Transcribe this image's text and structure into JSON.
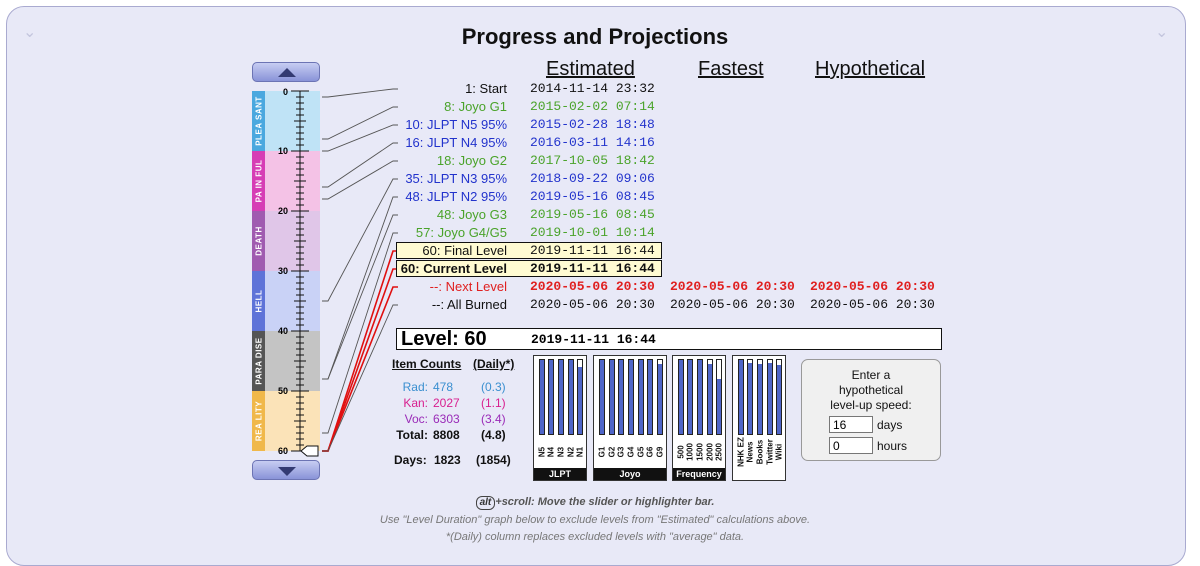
{
  "title": "Progress and Projections",
  "columns": {
    "estimated": "Estimated",
    "fastest": "Fastest",
    "hypothetical": "Hypothetical"
  },
  "slider": {
    "bands": [
      {
        "label": "PLEA SANT",
        "color": "#4aa8df",
        "bg": "#bfe3f6",
        "from": 1,
        "to": 10
      },
      {
        "label": "PA IN FUL",
        "color": "#d63db5",
        "bg": "#f4c2e6",
        "from": 11,
        "to": 20
      },
      {
        "label": "DEATH",
        "color": "#a05bb0",
        "bg": "#e0c6e8",
        "from": 21,
        "to": 30
      },
      {
        "label": "HELL",
        "color": "#5e73d8",
        "bg": "#c9d2f6",
        "from": 31,
        "to": 40
      },
      {
        "label": "PARA DISE",
        "color": "#555555",
        "bg": "#c4c4c4",
        "from": 41,
        "to": 50
      },
      {
        "label": "REA LITY",
        "color": "#f0b84a",
        "bg": "#fbe3b8",
        "from": 51,
        "to": 60
      }
    ],
    "tick_labels": [
      "0",
      "10",
      "20",
      "30",
      "40",
      "50",
      "60"
    ],
    "current_level": 60
  },
  "milestones": [
    {
      "level": "1",
      "label": "Start",
      "estimated": "2014-11-14 23:32",
      "color": "#111111"
    },
    {
      "level": "8",
      "label": "Joyo G1",
      "estimated": "2015-02-02 07:14",
      "color": "#4aa32a"
    },
    {
      "level": "10",
      "label": "JLPT N5 95%",
      "estimated": "2015-02-28 18:48",
      "color": "#2233cc"
    },
    {
      "level": "16",
      "label": "JLPT N4 95%",
      "estimated": "2016-03-11 14:16",
      "color": "#2233cc"
    },
    {
      "level": "18",
      "label": "Joyo G2",
      "estimated": "2017-10-05 18:42",
      "color": "#4aa32a"
    },
    {
      "level": "35",
      "label": "JLPT N3 95%",
      "estimated": "2018-09-22 09:06",
      "color": "#2233cc"
    },
    {
      "level": "48",
      "label": "JLPT N2 95%",
      "estimated": "2019-05-16 08:45",
      "color": "#2233cc"
    },
    {
      "level": "48",
      "label": "Joyo G3",
      "estimated": "2019-05-16 08:45",
      "color": "#4aa32a"
    },
    {
      "level": "57",
      "label": "Joyo G4/G5",
      "estimated": "2019-10-01 10:14",
      "color": "#4aa32a"
    },
    {
      "level": "60",
      "label": "Final Level",
      "estimated": "2019-11-11 16:44",
      "color": "#111111"
    },
    {
      "level": "60",
      "label": "Current Level",
      "estimated": "2019-11-11 16:44",
      "color": "#111111"
    },
    {
      "level": "--",
      "label": "Next Level",
      "estimated": "2020-05-06 20:30",
      "fastest": "2020-05-06 20:30",
      "hypothetical": "2020-05-06 20:30",
      "color": "#e02020"
    },
    {
      "level": "--",
      "label": "All Burned",
      "estimated": "2020-05-06 20:30",
      "fastest": "2020-05-06 20:30",
      "hypothetical": "2020-05-06 20:30",
      "color": "#111111"
    }
  ],
  "level_box": {
    "title": "Level: 60",
    "date": "2019-11-11 16:44"
  },
  "item_counts": {
    "header": "Item Counts",
    "daily_header": "(Daily*)",
    "rows": [
      {
        "label": "Rad:",
        "value": "478",
        "daily": "(0.3)",
        "color": "#3a8fd0"
      },
      {
        "label": "Kan:",
        "value": "2027",
        "daily": "(1.1)",
        "color": "#d8208f"
      },
      {
        "label": "Voc:",
        "value": "6303",
        "daily": "(3.4)",
        "color": "#9a2bb8"
      },
      {
        "label": "Total:",
        "value": "8808",
        "daily": "(4.8)",
        "color": "#111111"
      }
    ],
    "days_label": "Days:",
    "days_value": "1823",
    "days_daily": "(1854)"
  },
  "graphs": [
    {
      "name": "JLPT",
      "ticks": [
        "N5",
        "N4",
        "N3",
        "N2",
        "N1"
      ],
      "fill": [
        1.0,
        1.0,
        1.0,
        1.0,
        0.9
      ]
    },
    {
      "name": "Joyo",
      "ticks": [
        "G1",
        "G2",
        "G3",
        "G4",
        "G5",
        "G6",
        "G9"
      ],
      "fill": [
        1.0,
        1.0,
        1.0,
        1.0,
        1.0,
        1.0,
        0.95
      ]
    },
    {
      "name": "Frequency",
      "ticks": [
        "500",
        "1000",
        "1500",
        "2000",
        "2500"
      ],
      "fill": [
        1.0,
        1.0,
        1.0,
        0.95,
        0.75
      ]
    },
    {
      "name": "NHK EZ News Books Twitter Wiki",
      "ticks": [
        "NHK EZ",
        "News",
        "Books",
        "Twitter",
        "Wiki"
      ],
      "fill": [
        1.0,
        0.96,
        0.94,
        0.96,
        0.93
      ],
      "show_footer": false
    }
  ],
  "hypothetical": {
    "prompt_lines": [
      "Enter a",
      "hypothetical",
      "level-up speed:"
    ],
    "days_value": "16",
    "days_unit": "days",
    "hours_value": "0",
    "hours_unit": "hours"
  },
  "footer": {
    "alt_key": "alt",
    "line1_rest": "+scroll: Move the slider or highlighter bar.",
    "line2": "Use \"Level Duration\" graph below to exclude levels from \"Estimated\" calculations above.",
    "line3": "*(Daily) column replaces excluded levels with \"average\" data."
  }
}
